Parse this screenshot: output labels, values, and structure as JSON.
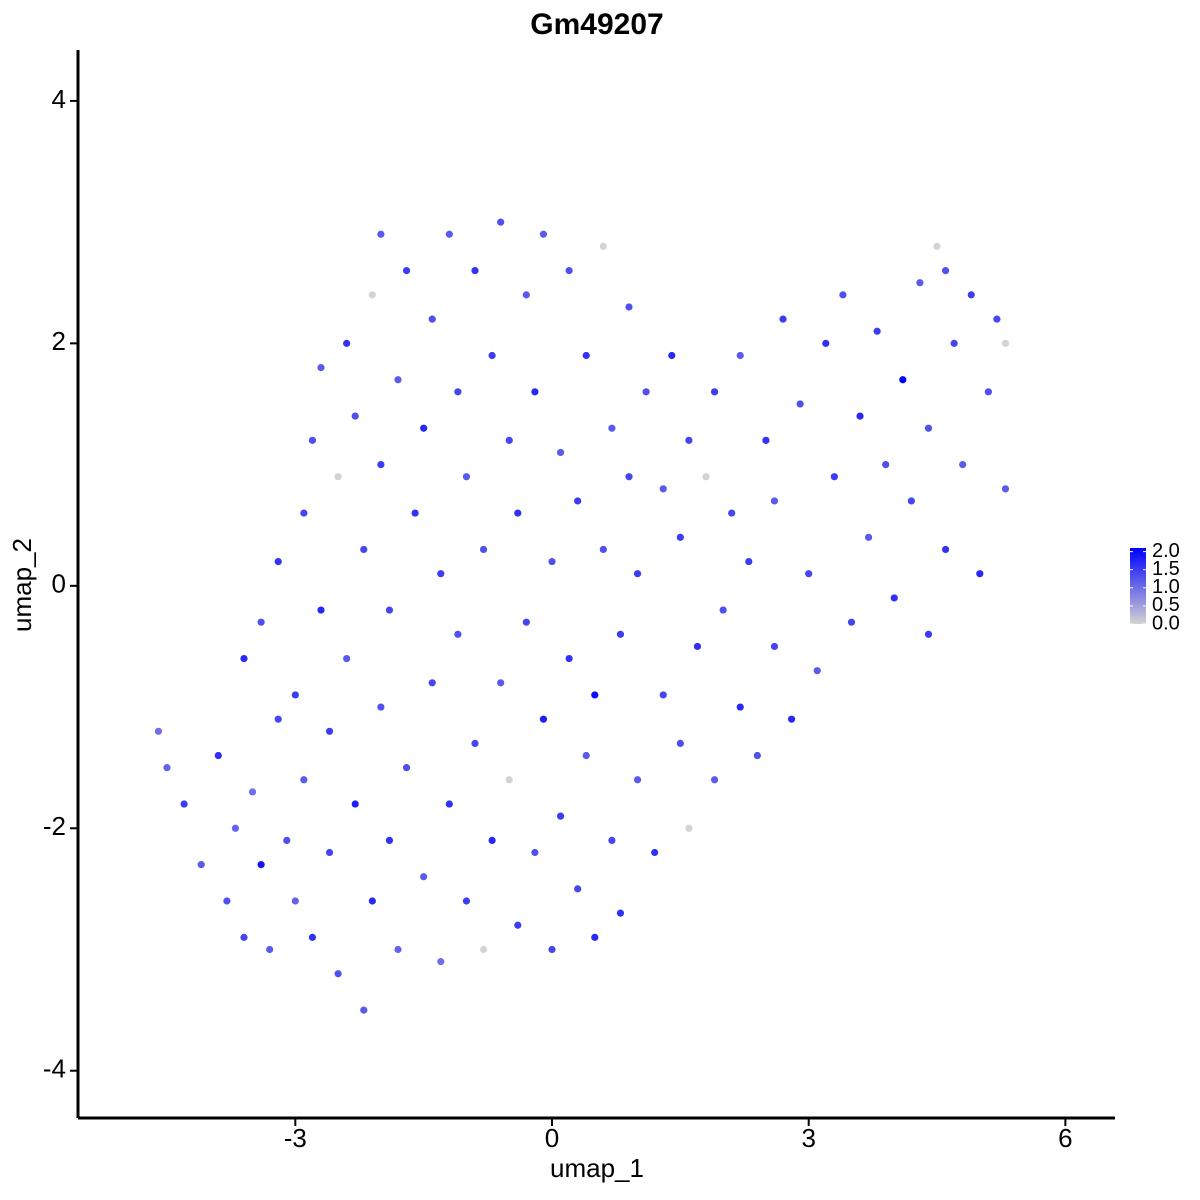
{
  "chart_data": {
    "type": "scatter",
    "title": "Gm49207",
    "x_label": "umap_1",
    "y_label": "umap_2",
    "xlim": [
      -5.54,
      6.58
    ],
    "ylim": [
      -4.39,
      4.42
    ],
    "xticks": [
      -3,
      0,
      3,
      6
    ],
    "yticks": [
      -4,
      -2,
      0,
      2,
      4
    ],
    "color_scale": {
      "low": "#d3d3d3",
      "high": "#0000ff",
      "limits": [
        0,
        2.1
      ],
      "ticks": [
        {
          "value": 0,
          "label": "0.0"
        },
        0.5,
        {
          "value": 1,
          "label": "1.0"
        },
        1.5,
        {
          "value": 2,
          "label": "2.0"
        }
      ]
    },
    "x": [
      -4.6,
      -4.5,
      -4.3,
      -4.1,
      -3.9,
      -3.8,
      -3.7,
      -3.6,
      -3.6,
      -3.5,
      -3.4,
      -3.4,
      -3.3,
      -3.2,
      -3.2,
      -3.1,
      -3.0,
      -3.0,
      -2.9,
      -2.9,
      -2.8,
      -2.8,
      -2.7,
      -2.7,
      -2.6,
      -2.6,
      -2.5,
      -2.5,
      -2.4,
      -2.4,
      -2.3,
      -2.3,
      -2.2,
      -2.2,
      -2.1,
      -2.1,
      -2.0,
      -2.0,
      -2.0,
      -1.9,
      -1.9,
      -1.8,
      -1.8,
      -1.7,
      -1.7,
      -1.6,
      -1.5,
      -1.5,
      -1.4,
      -1.4,
      -1.3,
      -1.3,
      -1.2,
      -1.2,
      -1.1,
      -1.1,
      -1.0,
      -1.0,
      -0.9,
      -0.9,
      -0.8,
      -0.8,
      -0.7,
      -0.7,
      -0.6,
      -0.6,
      -0.5,
      -0.5,
      -0.4,
      -0.4,
      -0.3,
      -0.3,
      -0.2,
      -0.2,
      -0.1,
      -0.1,
      0.0,
      0.0,
      0.1,
      0.1,
      0.2,
      0.2,
      0.3,
      0.3,
      0.4,
      0.4,
      0.5,
      0.5,
      0.6,
      0.6,
      0.7,
      0.7,
      0.8,
      0.8,
      0.9,
      0.9,
      1.0,
      1.0,
      1.1,
      1.2,
      1.3,
      1.3,
      1.4,
      1.5,
      1.5,
      1.6,
      1.6,
      1.7,
      1.8,
      1.9,
      1.9,
      2.0,
      2.1,
      2.2,
      2.2,
      2.3,
      2.4,
      2.5,
      2.6,
      2.6,
      2.7,
      2.8,
      2.9,
      3.0,
      3.1,
      3.2,
      3.3,
      3.4,
      3.5,
      3.6,
      3.7,
      3.8,
      3.9,
      4.0,
      4.1,
      4.2,
      4.3,
      4.4,
      4.4,
      4.5,
      4.6,
      4.7,
      4.8,
      4.9,
      5.0,
      5.1,
      5.2,
      5.3,
      5.3,
      4.6
    ],
    "y": [
      -1.2,
      -1.5,
      -1.8,
      -2.3,
      -1.4,
      -2.6,
      -2.0,
      -2.9,
      -0.6,
      -1.7,
      -2.3,
      -0.3,
      -3.0,
      -1.1,
      0.2,
      -2.1,
      -2.6,
      -0.9,
      0.6,
      -1.6,
      1.2,
      -2.9,
      -0.2,
      1.8,
      -2.2,
      -1.2,
      0.9,
      -3.2,
      2.0,
      -0.6,
      -1.8,
      1.4,
      -3.5,
      0.3,
      -2.6,
      2.4,
      -1.0,
      1.0,
      2.9,
      -2.1,
      -0.2,
      1.7,
      -3.0,
      2.6,
      -1.5,
      0.6,
      -2.4,
      1.3,
      -0.8,
      2.2,
      -3.1,
      0.1,
      -1.8,
      2.9,
      1.6,
      -0.4,
      -2.6,
      0.9,
      2.6,
      -1.3,
      -3.0,
      0.3,
      1.9,
      -2.1,
      -0.8,
      3.0,
      1.2,
      -1.6,
      -2.8,
      0.6,
      2.4,
      -0.3,
      -2.2,
      1.6,
      -1.1,
      2.9,
      -3.0,
      0.2,
      -1.9,
      1.1,
      -0.6,
      2.6,
      -2.5,
      0.7,
      -1.4,
      1.9,
      -2.9,
      -0.9,
      0.3,
      2.8,
      -2.1,
      1.3,
      -0.4,
      -2.7,
      2.3,
      0.9,
      -1.6,
      0.1,
      1.6,
      -2.2,
      -0.9,
      0.8,
      1.9,
      -1.3,
      0.4,
      -2.0,
      1.2,
      -0.5,
      0.9,
      -1.6,
      1.6,
      -0.2,
      0.6,
      -1.0,
      1.9,
      0.2,
      -1.4,
      1.2,
      -0.5,
      0.7,
      2.2,
      -1.1,
      1.5,
      0.1,
      -0.7,
      2.0,
      0.9,
      2.4,
      -0.3,
      1.4,
      0.4,
      2.1,
      1.0,
      -0.1,
      1.7,
      0.7,
      2.5,
      -0.4,
      1.3,
      2.8,
      0.3,
      2.0,
      1.0,
      2.4,
      0.1,
      1.6,
      2.2,
      0.8,
      2.0,
      2.6
    ],
    "values": [
      1.0,
      1.1,
      1.5,
      1.2,
      1.6,
      1.3,
      1.1,
      1.4,
      1.7,
      1.0,
      1.9,
      1.3,
      1.2,
      1.4,
      1.6,
      1.3,
      1.1,
      1.5,
      1.4,
      1.2,
      1.3,
      1.6,
      1.7,
      1.2,
      1.4,
      1.5,
      0.0,
      1.3,
      1.6,
      1.2,
      1.8,
      1.3,
      1.2,
      1.4,
      1.7,
      0.0,
      1.3,
      1.5,
      1.2,
      1.6,
      1.4,
      1.2,
      1.1,
      1.5,
      1.3,
      1.6,
      1.2,
      1.7,
      1.4,
      1.3,
      1.0,
      1.5,
      1.6,
      1.2,
      1.4,
      1.3,
      1.5,
      1.2,
      1.6,
      1.4,
      0.0,
      1.3,
      1.5,
      1.7,
      1.2,
      1.3,
      1.4,
      0.0,
      1.5,
      1.6,
      1.2,
      1.4,
      1.3,
      1.7,
      1.8,
      1.2,
      1.4,
      1.3,
      1.5,
      1.2,
      1.6,
      1.3,
      1.4,
      1.5,
      1.2,
      1.6,
      1.7,
      2.0,
      1.3,
      0.0,
      1.4,
      1.2,
      1.5,
      1.6,
      1.3,
      1.4,
      1.2,
      1.5,
      1.3,
      1.6,
      1.4,
      1.2,
      1.7,
      1.3,
      1.5,
      0.0,
      1.4,
      1.6,
      0.0,
      1.2,
      1.5,
      1.3,
      1.4,
      1.7,
      1.2,
      1.5,
      1.3,
      1.6,
      1.4,
      1.2,
      1.5,
      1.7,
      1.3,
      1.4,
      1.2,
      1.6,
      1.5,
      1.3,
      1.4,
      1.7,
      1.2,
      1.5,
      1.3,
      1.6,
      2.1,
      1.4,
      1.2,
      1.5,
      1.3,
      0.0,
      1.6,
      1.4,
      1.2,
      1.5,
      1.7,
      1.3,
      1.4,
      1.2,
      0.0,
      1.3
    ]
  }
}
